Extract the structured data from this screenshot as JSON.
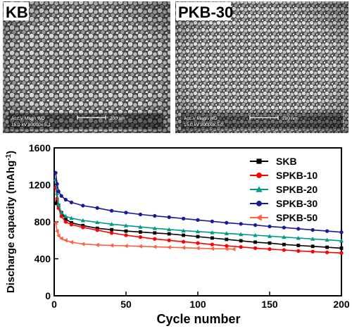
{
  "panels": [
    {
      "label": "KB",
      "scale_bar": "200 nm",
      "info_line1": "Acc.V  Magn     WD",
      "info_line2": "15.0 kV 80000x  5.1"
    },
    {
      "label": "PKB-30",
      "scale_bar": "200 nm",
      "info_line1": "Acc.V  Magn     WD",
      "info_line2": "15.0 kV 80000x  5.0"
    }
  ],
  "chart_data": {
    "type": "line",
    "title": "",
    "xlabel": "Cycle number",
    "ylabel": "Discharge capacity (mAhg",
    "ylabel_sup": "-1",
    "ylabel_close": ")",
    "xlim": [
      0,
      200
    ],
    "ylim": [
      0,
      1600
    ],
    "xticks": [
      0,
      50,
      100,
      150,
      200
    ],
    "yticks": [
      0,
      400,
      800,
      1200,
      1600
    ],
    "grid": false,
    "legend_position": "top-right",
    "series": [
      {
        "name": "SKB",
        "color": "#000000",
        "marker": "square",
        "x": [
          1,
          2,
          3,
          5,
          8,
          12,
          20,
          30,
          40,
          50,
          60,
          70,
          80,
          90,
          100,
          110,
          120,
          130,
          140,
          150,
          160,
          170,
          180,
          190,
          200
        ],
        "y": [
          1000,
          1020,
          980,
          900,
          830,
          790,
          760,
          730,
          715,
          700,
          690,
          680,
          670,
          655,
          640,
          625,
          610,
          595,
          580,
          570,
          555,
          545,
          535,
          525,
          515
        ]
      },
      {
        "name": "SPKB-10",
        "color": "#ff0000",
        "marker": "circle",
        "x": [
          1,
          2,
          3,
          5,
          8,
          12,
          20,
          30,
          40,
          50,
          60,
          70,
          80,
          90,
          100,
          110,
          120,
          130,
          140,
          150,
          160,
          170,
          180,
          190,
          200
        ],
        "y": [
          1170,
          1050,
          950,
          860,
          800,
          770,
          740,
          710,
          680,
          655,
          635,
          615,
          600,
          585,
          570,
          555,
          540,
          528,
          515,
          505,
          495,
          485,
          478,
          470,
          463
        ]
      },
      {
        "name": "SPKB-20",
        "color": "#009a8a",
        "marker": "triangle",
        "x": [
          1,
          2,
          3,
          5,
          8,
          12,
          20,
          30,
          40,
          50,
          60,
          70,
          80,
          90,
          100,
          110,
          120,
          130,
          140,
          150,
          160,
          170,
          180,
          190,
          200
        ],
        "y": [
          1260,
          1110,
          990,
          900,
          860,
          840,
          815,
          795,
          775,
          760,
          745,
          730,
          718,
          705,
          695,
          685,
          675,
          665,
          655,
          645,
          635,
          625,
          615,
          605,
          595
        ]
      },
      {
        "name": "SPKB-30",
        "color": "#1a1a99",
        "marker": "circle",
        "x": [
          1,
          2,
          3,
          5,
          8,
          12,
          20,
          30,
          40,
          50,
          60,
          70,
          80,
          90,
          100,
          110,
          120,
          130,
          140,
          150,
          160,
          170,
          180,
          190,
          200
        ],
        "y": [
          1330,
          1210,
          1130,
          1080,
          1040,
          1010,
          975,
          950,
          920,
          900,
          880,
          865,
          850,
          835,
          820,
          805,
          790,
          778,
          765,
          750,
          738,
          725,
          712,
          700,
          688
        ]
      },
      {
        "name": "SPKB-50",
        "color": "#ff6040",
        "marker": "triangle-left",
        "x": [
          1,
          2,
          3,
          5,
          8,
          12,
          20,
          30,
          40,
          50,
          60,
          70,
          80,
          90,
          100,
          110,
          120,
          125
        ],
        "y": [
          790,
          700,
          650,
          620,
          600,
          580,
          560,
          550,
          545,
          540,
          535,
          530,
          525,
          520,
          515,
          510,
          508,
          505
        ]
      }
    ]
  }
}
